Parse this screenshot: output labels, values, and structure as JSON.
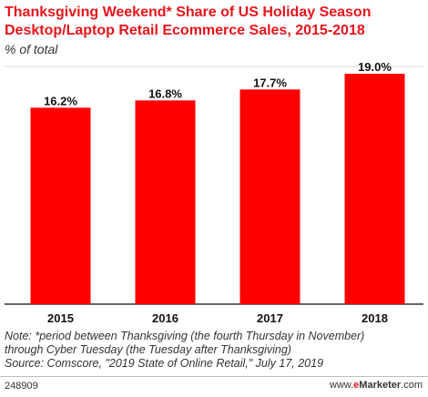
{
  "header": {
    "title_line1": "Thanksgiving Weekend* Share of US Holiday Season",
    "title_line2": "Desktop/Laptop Retail Ecommerce Sales, 2015-2018",
    "subtitle": "% of total"
  },
  "chart_data": {
    "type": "bar",
    "categories": [
      "2015",
      "2016",
      "2017",
      "2018"
    ],
    "values": [
      16.2,
      16.8,
      17.7,
      19.0
    ],
    "value_labels": [
      "16.2%",
      "16.8%",
      "17.7%",
      "19.0%"
    ],
    "ylim": [
      0,
      19.6
    ],
    "grid": false,
    "legend": "none",
    "bar_color": "#ff0000",
    "gridline_color": "#d9d9d9"
  },
  "notes": {
    "line1": "Note: *period between Thanksgiving (the fourth Thursday in November)",
    "line2": "through Cyber Tuesday (the Tuesday after Thanksgiving)",
    "line3": "Source: Comscore, \"2019 State of Online Retail,\" July 17, 2019"
  },
  "footer": {
    "chart_id": "248909",
    "brand_prefix": "www.",
    "brand_e": "e",
    "brand_name": "Marketer",
    "brand_suffix": ".com"
  }
}
